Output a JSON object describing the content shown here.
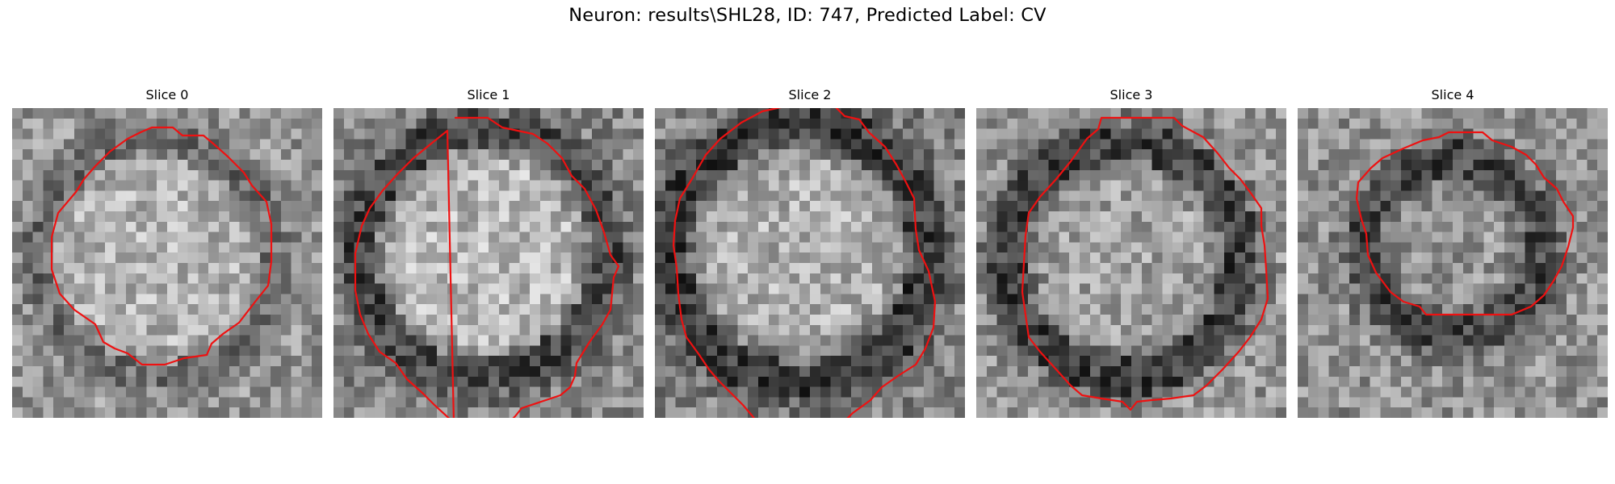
{
  "figure": {
    "title": "Neuron: results\\SHL28, ID: 747, Predicted Label: CV"
  },
  "panels": [
    {
      "title": "Slice 0"
    },
    {
      "title": "Slice 1"
    },
    {
      "title": "Slice 2"
    },
    {
      "title": "Slice 3"
    },
    {
      "title": "Slice 4"
    }
  ],
  "style": {
    "contour_color": "#ee1111",
    "image_colormap": "grayscale"
  }
}
